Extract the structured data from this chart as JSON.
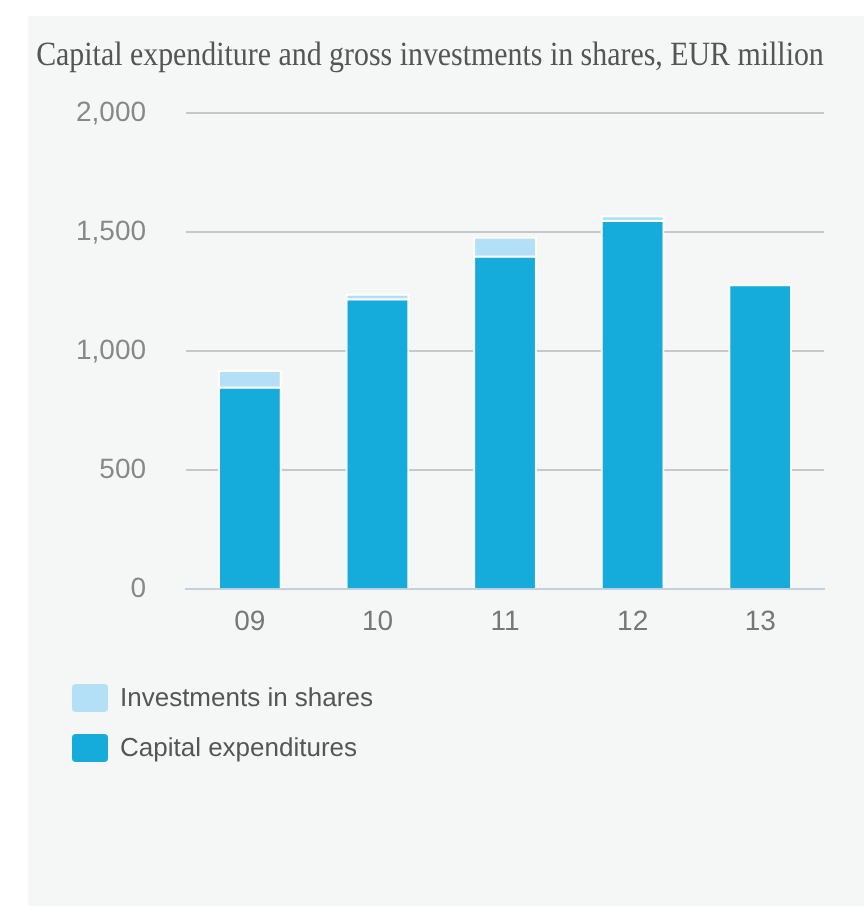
{
  "chart_data": {
    "type": "bar",
    "title": "Capital expenditure and gross investments in shares, EUR million",
    "categories": [
      "09",
      "10",
      "11",
      "12",
      "13"
    ],
    "stacked": true,
    "series": [
      {
        "name": "Capital expenditures",
        "color": "#15acdb",
        "values": [
          850,
          1220,
          1400,
          1550,
          1280
        ]
      },
      {
        "name": "Investments in shares",
        "color": "#b3e0f7",
        "values": [
          70,
          20,
          80,
          20,
          null
        ]
      }
    ],
    "ylim": [
      0,
      2000
    ],
    "yticks": [
      {
        "value": 0,
        "label": "0"
      },
      {
        "value": 500,
        "label": "500"
      },
      {
        "value": 1000,
        "label": "1,000"
      },
      {
        "value": 1500,
        "label": "1,500"
      },
      {
        "value": 2000,
        "label": "2,000"
      }
    ],
    "grid": "y",
    "legend": "bottom left"
  }
}
